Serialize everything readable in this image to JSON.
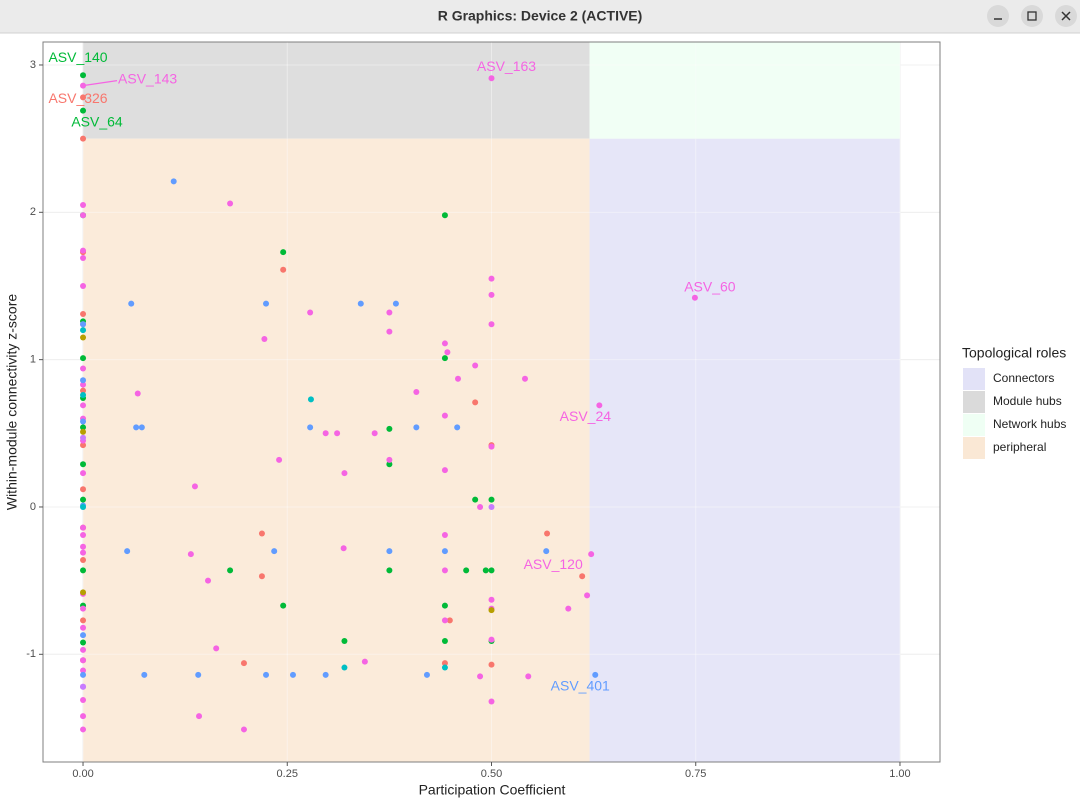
{
  "window_title": "R Graphics: Device 2 (ACTIVE)",
  "chart_data": {
    "type": "scatter",
    "xlabel": "Participation Coefficient",
    "ylabel": "Within-module connectivity z-score",
    "xlim": [
      -0.049,
      1.049
    ],
    "ylim": [
      -1.731,
      3.156
    ],
    "xticks": [
      {
        "value": 0,
        "label": "0.00"
      },
      {
        "value": 0.25,
        "label": "0.25"
      },
      {
        "value": 0.5,
        "label": "0.50"
      },
      {
        "value": 0.75,
        "label": "0.75"
      },
      {
        "value": 1,
        "label": "1.00"
      }
    ],
    "yticks": [
      -1,
      0,
      1,
      2,
      3
    ],
    "grid": true,
    "legend": "right",
    "legend_title": "Topological roles",
    "regions": [
      {
        "name": "Connectors",
        "color": "#E2E2F7",
        "xmin": 0.62,
        "xmax": 1,
        "ymin": null,
        "ymax": 2.5
      },
      {
        "name": "Module hubs",
        "color": "#DADADA",
        "xmin": 0,
        "xmax": 0.62,
        "ymin": 2.5,
        "ymax": null
      },
      {
        "name": "Network hubs",
        "color": "#EFFFF4",
        "xmin": 0.62,
        "xmax": 1,
        "ymin": 2.5,
        "ymax": null
      },
      {
        "name": "peripheral",
        "color": "#FAE8D5",
        "xmin": 0,
        "xmax": 0.62,
        "ymin": null,
        "ymax": 2.5
      }
    ],
    "series": [
      {
        "color": "#00BA38",
        "x": [
          0,
          0,
          0,
          0,
          0,
          0,
          0,
          0,
          0,
          0,
          0,
          0,
          0.18,
          0.245,
          0.245,
          0.32,
          0.375,
          0.375,
          0.375,
          0.443,
          0.443,
          0.443,
          0.443,
          0.469,
          0.48,
          0.493,
          0.5,
          0.5,
          0.5
        ],
        "values": [
          2.93,
          2.69,
          1.98,
          1.26,
          1.01,
          0.74,
          0.54,
          0.29,
          0.05,
          -0.43,
          -0.67,
          -0.92,
          -0.43,
          1.73,
          -0.67,
          -0.91,
          0.53,
          0.29,
          -0.43,
          1.98,
          1.01,
          -0.67,
          -0.91,
          -0.43,
          0.05,
          -0.43,
          0.05,
          -0.43,
          -0.91
        ]
      },
      {
        "color": "#F8766D",
        "x": [
          0,
          0,
          0,
          0,
          0,
          0,
          0,
          0,
          0,
          0,
          0,
          0.219,
          0.219,
          0.245,
          0.197,
          0.443,
          0.48,
          0.5,
          0.5,
          0.568,
          0.611,
          0.449
        ],
        "values": [
          2.78,
          2.5,
          1.73,
          1.31,
          0.79,
          0.42,
          0.12,
          -0.14,
          -0.36,
          -0.77,
          -1.04,
          -0.18,
          -0.47,
          1.61,
          -1.06,
          -1.06,
          0.71,
          0.42,
          -1.07,
          -0.18,
          -0.47,
          -0.77
        ]
      },
      {
        "color": "#F564E3",
        "x": [
          0,
          0.5,
          0.749,
          0.632,
          0.622,
          0.617,
          0.594,
          0.545,
          0.5,
          0.5,
          0.5,
          0.5,
          0.486,
          0.5,
          0.5,
          0.5,
          0.48,
          0.459,
          0.541,
          0.443,
          0.446,
          0.443,
          0.443,
          0.443,
          0.443,
          0.443,
          0.486,
          0.5,
          0.408,
          0.375,
          0.375,
          0.375,
          0.357,
          0.278,
          0.297,
          0.311,
          0.32,
          0.319,
          0.345,
          0.18,
          0.222,
          0.24,
          0.137,
          0.132,
          0.153,
          0.163,
          0.142,
          0.197,
          0.067,
          0,
          0,
          0,
          0,
          0,
          0,
          0,
          0,
          0,
          0,
          0,
          0,
          0,
          0,
          0,
          0,
          0,
          0,
          0,
          0,
          0,
          0,
          0,
          0,
          0,
          0
        ],
        "values": [
          2.86,
          2.91,
          1.42,
          0.69,
          -0.32,
          -0.6,
          -0.69,
          -1.15,
          -1.32,
          -0.9,
          -0.63,
          -0.69,
          -1.15,
          1.55,
          1.44,
          1.24,
          0.96,
          0.87,
          0.87,
          1.11,
          1.05,
          0.62,
          0.25,
          -0.19,
          -0.43,
          -0.77,
          0,
          0.41,
          0.78,
          1.32,
          1.19,
          0.32,
          0.5,
          1.32,
          0.5,
          0.5,
          0.23,
          -0.28,
          -1.05,
          2.06,
          1.14,
          0.32,
          0.14,
          -0.32,
          -0.5,
          -0.96,
          -1.42,
          -1.51,
          0.77,
          2.05,
          1.98,
          1.74,
          1.69,
          1.5,
          1.24,
          0.94,
          0.83,
          0.69,
          0.6,
          0.45,
          0.23,
          -0.14,
          -0.19,
          -0.27,
          -0.31,
          -0.59,
          -0.69,
          -0.82,
          -0.97,
          -1.04,
          -1.11,
          -1.22,
          -1.31,
          -1.42,
          -1.51
        ]
      },
      {
        "color": "#619CFF",
        "x": [
          0.111,
          0.059,
          0.224,
          0.34,
          0.383,
          0.065,
          0.072,
          0.278,
          0.408,
          0.458,
          0.054,
          0.234,
          0.375,
          0.443,
          0.567,
          0.075,
          0.141,
          0.224,
          0.257,
          0.297,
          0.421,
          0.627,
          0,
          0,
          0,
          0,
          0,
          0
        ],
        "values": [
          2.21,
          1.38,
          1.38,
          1.38,
          1.38,
          0.54,
          0.54,
          0.54,
          0.54,
          0.54,
          -0.3,
          -0.3,
          -0.3,
          -0.3,
          -0.3,
          -1.14,
          -1.14,
          -1.14,
          -1.14,
          -1.14,
          -1.14,
          -1.14,
          1.24,
          0.86,
          0.58,
          0.01,
          -0.87,
          -1.14
        ]
      },
      {
        "color": "#00BFC4",
        "x": [
          0.279,
          0.32,
          0.443,
          0,
          0,
          0
        ],
        "values": [
          0.73,
          -1.09,
          -1.09,
          1.2,
          0.76,
          0
        ]
      },
      {
        "color": "#B79F00",
        "x": [
          0,
          0,
          0.5,
          0
        ],
        "values": [
          1.15,
          -0.58,
          -0.7,
          0.51
        ]
      },
      {
        "color": "#C77CFF",
        "x": [
          0.5,
          0,
          0
        ],
        "values": [
          0,
          -1.22,
          0.47
        ]
      }
    ],
    "annotations": [
      {
        "text": "ASV_140",
        "color": "#00BA38",
        "x": 0,
        "y": 2.93
      },
      {
        "text": "ASV_143",
        "color": "#F564E3",
        "x": 0,
        "y": 2.86
      },
      {
        "text": "ASV_326",
        "color": "#F8766D",
        "x": 0,
        "y": 2.78
      },
      {
        "text": "ASV_64",
        "color": "#00BA38",
        "x": 0,
        "y": 2.69
      },
      {
        "text": "ASV_163",
        "color": "#F564E3",
        "x": 0.5,
        "y": 2.91
      },
      {
        "text": "ASV_60",
        "color": "#F564E3",
        "x": 0.749,
        "y": 1.42
      },
      {
        "text": "ASV_24",
        "color": "#F564E3",
        "x": 0.632,
        "y": 0.69
      },
      {
        "text": "ASV_120",
        "color": "#F564E3",
        "x": 0.622,
        "y": -0.32
      },
      {
        "text": "ASV_401",
        "color": "#619CFF",
        "x": 0.627,
        "y": -1.14
      }
    ]
  }
}
